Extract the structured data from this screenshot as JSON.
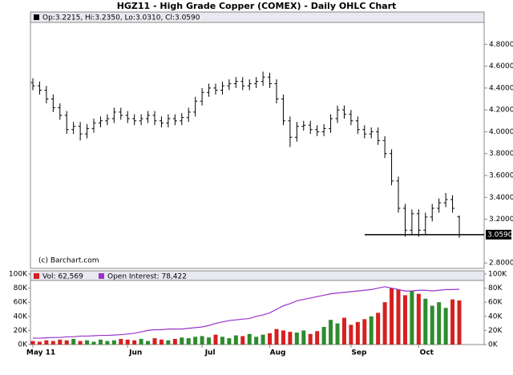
{
  "chart_data": [
    {
      "type": "ohlc",
      "title": "HGZ11 - High Grade Copper (COMEX) - Daily OHLC Chart",
      "legend": "Op:3.2215, Hi:3.2350, Lo:3.0310, Cl:3.0590",
      "annotation": "(c) Barchart.com",
      "last_label": "3.0590",
      "color": "#000000",
      "open": [
        4.45,
        4.42,
        4.38,
        4.3,
        4.22,
        4.15,
        4.02,
        4.05,
        3.98,
        4.03,
        4.08,
        4.1,
        4.12,
        4.18,
        4.15,
        4.12,
        4.1,
        4.12,
        4.15,
        4.1,
        4.08,
        4.12,
        4.1,
        4.13,
        4.18,
        4.28,
        4.36,
        4.4,
        4.38,
        4.42,
        4.44,
        4.46,
        4.42,
        4.44,
        4.46,
        4.5,
        4.44,
        4.3,
        4.1,
        3.95,
        4.05,
        4.06,
        4.02,
        4.0,
        4.03,
        4.12,
        4.2,
        4.16,
        4.1,
        4.02,
        3.98,
        4.0,
        3.92,
        3.8,
        3.55,
        3.3,
        3.1,
        3.25,
        3.1,
        3.22,
        3.3,
        3.35,
        3.38,
        3.2215
      ],
      "high": [
        4.49,
        4.46,
        4.42,
        4.34,
        4.26,
        4.19,
        4.09,
        4.09,
        4.07,
        4.12,
        4.14,
        4.16,
        4.22,
        4.22,
        4.19,
        4.16,
        4.16,
        4.19,
        4.19,
        4.14,
        4.16,
        4.16,
        4.17,
        4.22,
        4.32,
        4.4,
        4.44,
        4.44,
        4.46,
        4.48,
        4.5,
        4.5,
        4.48,
        4.5,
        4.55,
        4.54,
        4.48,
        4.34,
        4.14,
        4.09,
        4.1,
        4.1,
        4.06,
        4.07,
        4.16,
        4.24,
        4.24,
        4.2,
        4.14,
        4.06,
        4.04,
        4.04,
        3.96,
        3.84,
        3.59,
        3.34,
        3.29,
        3.29,
        3.26,
        3.34,
        3.39,
        3.44,
        3.42,
        3.235
      ],
      "low": [
        4.38,
        4.34,
        4.26,
        4.18,
        4.11,
        3.98,
        3.98,
        3.92,
        3.94,
        3.99,
        4.04,
        4.06,
        4.08,
        4.11,
        4.08,
        4.06,
        4.06,
        4.08,
        4.06,
        4.04,
        4.04,
        4.06,
        4.06,
        4.09,
        4.14,
        4.24,
        4.32,
        4.34,
        4.34,
        4.38,
        4.4,
        4.38,
        4.38,
        4.4,
        4.42,
        4.4,
        4.26,
        4.06,
        3.86,
        3.91,
        4.01,
        3.98,
        3.96,
        3.96,
        3.99,
        4.08,
        4.12,
        4.06,
        3.98,
        3.94,
        3.94,
        3.88,
        3.76,
        3.51,
        3.26,
        3.04,
        3.06,
        3.04,
        3.06,
        3.18,
        3.26,
        3.31,
        3.26,
        3.031
      ],
      "close": [
        4.42,
        4.38,
        4.3,
        4.22,
        4.15,
        4.02,
        4.05,
        3.98,
        4.03,
        4.08,
        4.1,
        4.12,
        4.18,
        4.15,
        4.12,
        4.1,
        4.12,
        4.15,
        4.1,
        4.08,
        4.12,
        4.1,
        4.13,
        4.18,
        4.28,
        4.36,
        4.4,
        4.38,
        4.42,
        4.44,
        4.46,
        4.42,
        4.44,
        4.46,
        4.5,
        4.44,
        4.3,
        4.1,
        3.95,
        4.05,
        4.06,
        4.02,
        4.0,
        4.03,
        4.12,
        4.2,
        4.16,
        4.1,
        4.02,
        3.98,
        4.0,
        3.92,
        3.8,
        3.55,
        3.3,
        3.1,
        3.25,
        3.1,
        3.22,
        3.3,
        3.35,
        3.38,
        3.3,
        3.059
      ],
      "ylim": [
        2.75,
        5.0
      ],
      "yticks": [
        {
          "value": 2.8,
          "label": "2.8000"
        },
        {
          "value": 3.2,
          "label": "3.2000"
        },
        {
          "value": 3.4,
          "label": "3.4000"
        },
        {
          "value": 3.6,
          "label": "3.6000"
        },
        {
          "value": 3.8,
          "label": "3.8000"
        },
        {
          "value": 4.0,
          "label": "4.0000"
        },
        {
          "value": 4.2,
          "label": "4.2000"
        },
        {
          "value": 4.4,
          "label": "4.4000"
        },
        {
          "value": 4.6,
          "label": "4.6000"
        },
        {
          "value": 4.8,
          "label": "4.8000"
        }
      ]
    },
    {
      "type": "bar",
      "categories": [
        "May 11",
        null,
        null,
        null,
        null,
        null,
        null,
        null,
        null,
        null,
        null,
        null,
        null,
        null,
        "Jun",
        null,
        null,
        null,
        null,
        null,
        null,
        null,
        null,
        null,
        null,
        "Jul",
        null,
        null,
        null,
        null,
        null,
        null,
        null,
        null,
        null,
        "Aug",
        null,
        null,
        null,
        null,
        null,
        null,
        null,
        null,
        null,
        null,
        null,
        "Sep",
        null,
        null,
        null,
        null,
        null,
        null,
        null,
        null,
        null,
        "Oct",
        null,
        null,
        null,
        null,
        null,
        null
      ],
      "series": [
        {
          "name": "Vol: 62,569",
          "type": "bar",
          "color": "#d62020",
          "up_color": "#2e8b2e",
          "down_color": "#d62020",
          "values": [
            5000,
            4000,
            6000,
            5000,
            7000,
            6000,
            8000,
            5000,
            6000,
            4000,
            7000,
            5000,
            6000,
            8000,
            7000,
            6000,
            8000,
            5000,
            9000,
            7000,
            6000,
            8000,
            10000,
            9000,
            11000,
            12000,
            10000,
            14000,
            11000,
            9000,
            13000,
            12000,
            15000,
            11000,
            14000,
            16000,
            22000,
            20000,
            18000,
            17000,
            20000,
            15000,
            19000,
            25000,
            35000,
            30000,
            38000,
            28000,
            32000,
            36000,
            40000,
            45000,
            60000,
            80000,
            78000,
            70000,
            76000,
            72000,
            65000,
            55000,
            60000,
            52000,
            64000,
            62569
          ]
        },
        {
          "name": "Open Interest: 78,422",
          "type": "line",
          "color": "#9933cc",
          "values": [
            9000,
            9000,
            9500,
            10000,
            10000,
            11000,
            11000,
            12000,
            12000,
            12500,
            13000,
            13000,
            13500,
            14000,
            15000,
            16000,
            18000,
            20000,
            21000,
            21000,
            22000,
            22000,
            22000,
            23000,
            24000,
            25000,
            27000,
            30000,
            32000,
            34000,
            35000,
            36000,
            37000,
            40000,
            42000,
            45000,
            50000,
            55000,
            58000,
            62000,
            64000,
            66000,
            68000,
            70000,
            72000,
            73000,
            74000,
            75000,
            76000,
            77000,
            78000,
            80000,
            82000,
            80000,
            78000,
            76000,
            76000,
            77000,
            77000,
            76000,
            77000,
            78000,
            78000,
            78422
          ]
        }
      ],
      "ylim": [
        0,
        100000
      ],
      "yticks": [
        {
          "value": 0,
          "label": "0K"
        },
        {
          "value": 20000,
          "label": "20K"
        },
        {
          "value": 40000,
          "label": "40K"
        },
        {
          "value": 60000,
          "label": "60K"
        },
        {
          "value": 80000,
          "label": "80K"
        },
        {
          "value": 100000,
          "label": "100K"
        }
      ]
    }
  ]
}
